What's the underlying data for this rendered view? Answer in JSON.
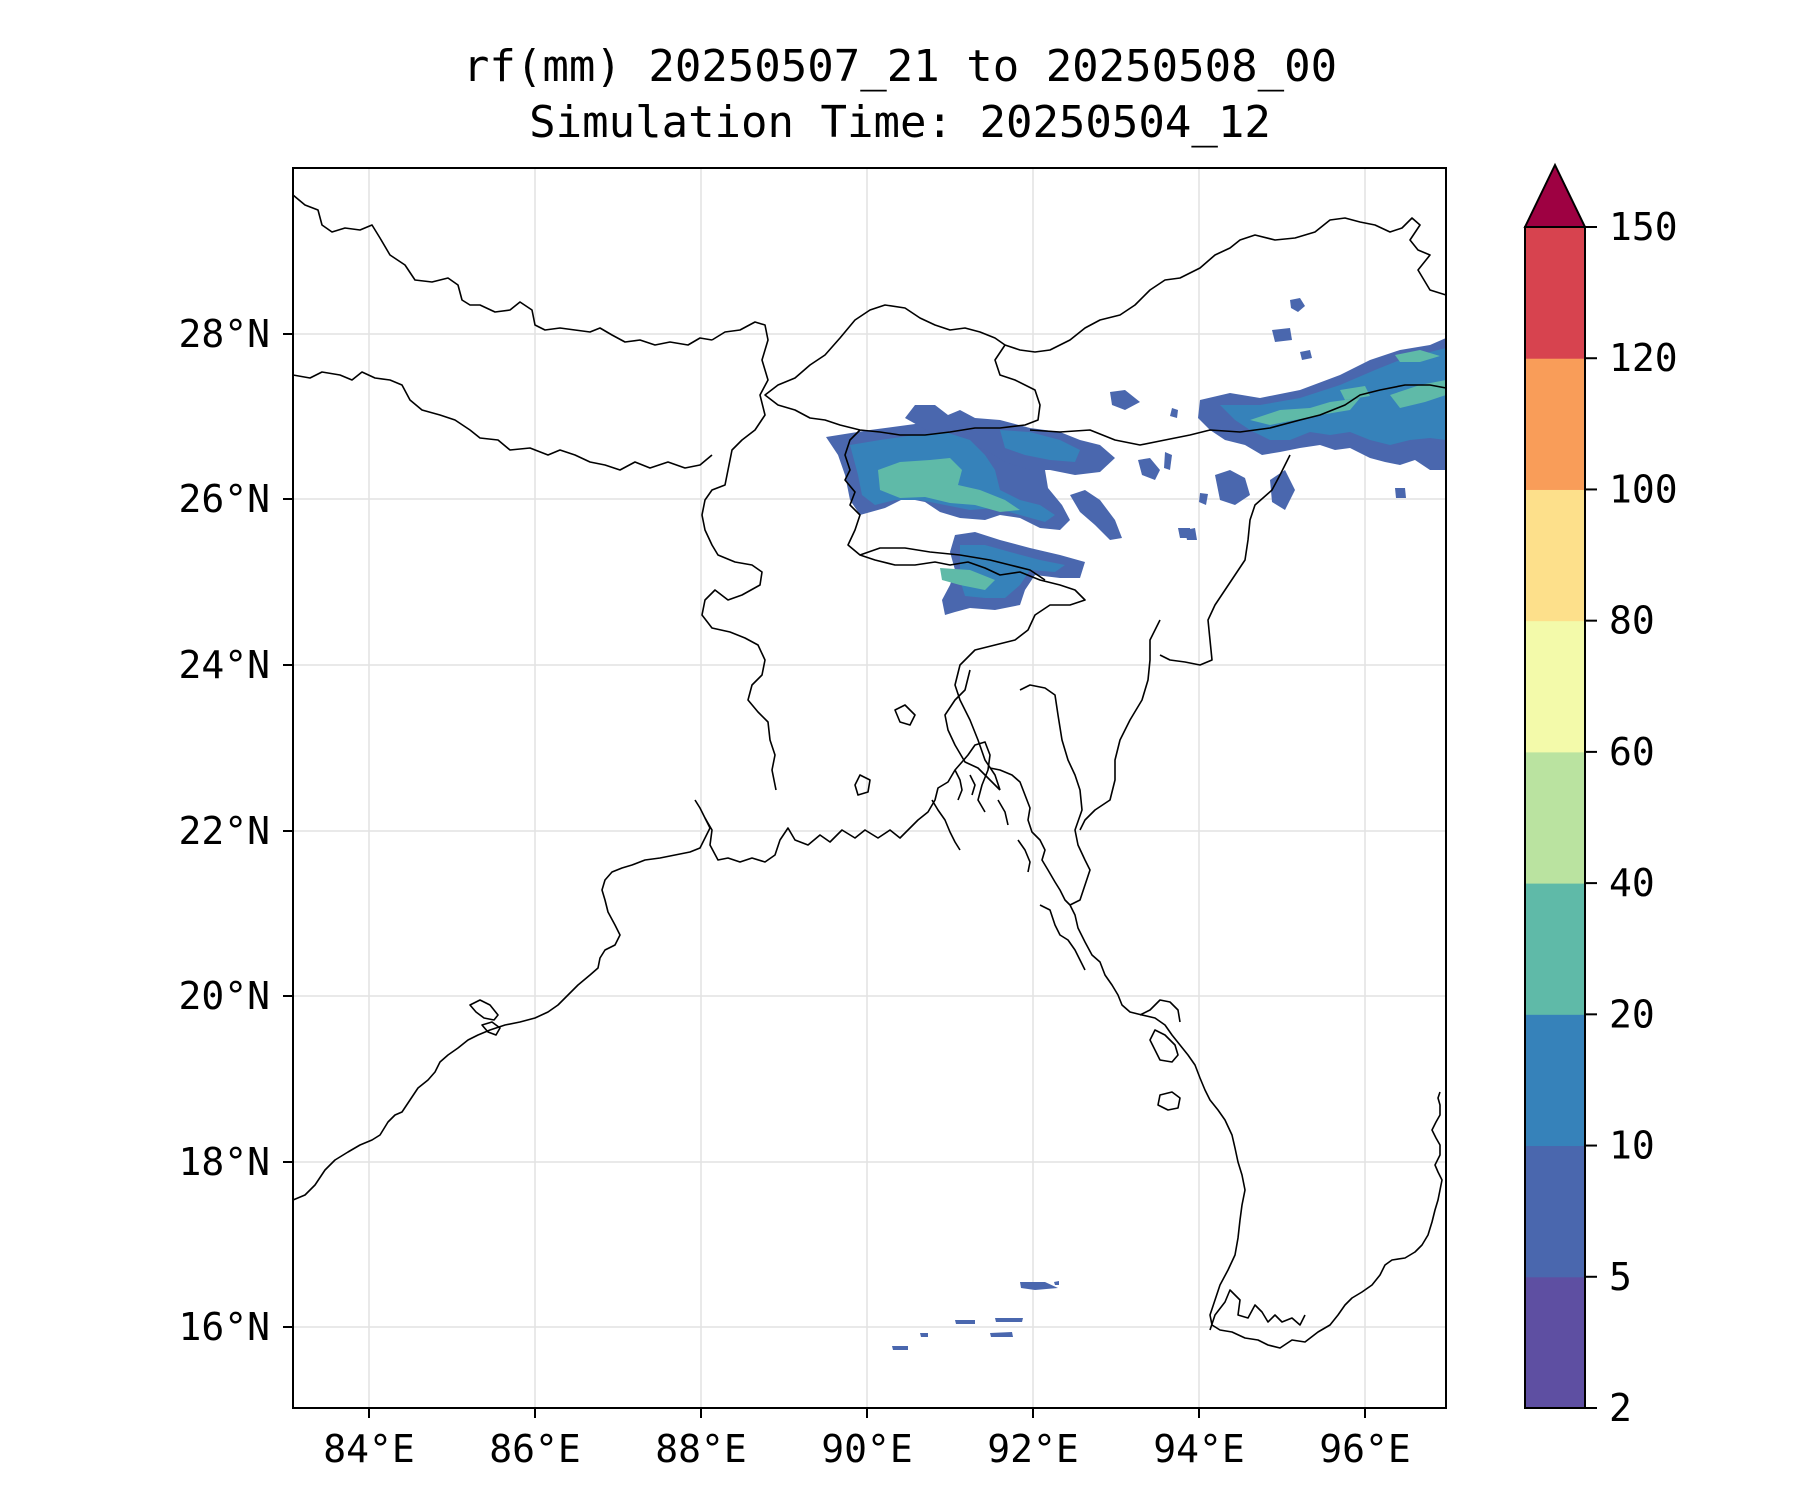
{
  "title": {
    "line1": "rf(mm) 20250507_21 to 20250508_00",
    "line2": "Simulation Time: 20250504_12"
  },
  "map": {
    "lon_range": [
      83,
      97
    ],
    "lat_range": [
      15,
      30
    ],
    "x_ticks": [
      "84°E",
      "86°E",
      "88°E",
      "90°E",
      "92°E",
      "94°E",
      "96°E"
    ],
    "y_ticks": [
      "16°N",
      "18°N",
      "20°N",
      "22°N",
      "24°N",
      "26°N",
      "28°N"
    ],
    "gridlines": true
  },
  "colorbar": {
    "levels": [
      "2",
      "5",
      "10",
      "20",
      "40",
      "60",
      "80",
      "100",
      "120",
      "150"
    ],
    "colors": [
      "#5e4fa2",
      "#4a67ae",
      "#3682ba",
      "#5fbaa8",
      "#bae3a0",
      "#f3faaa",
      "#fde08b",
      "#f99d59",
      "#d7434f",
      "#9e0142"
    ],
    "extend": "max"
  }
}
